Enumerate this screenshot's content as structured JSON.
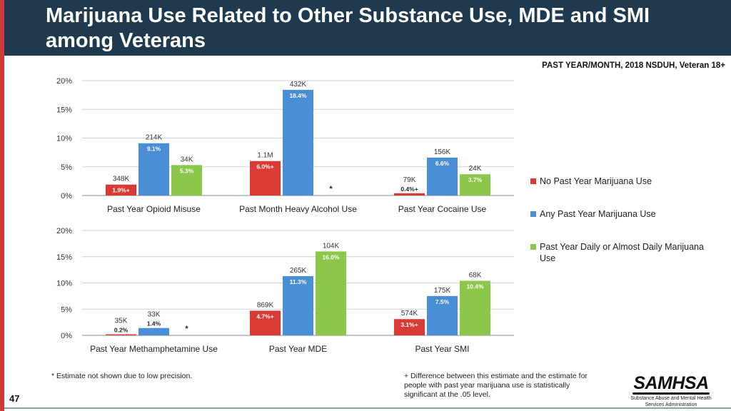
{
  "header": {
    "title": "Marijuana Use Related to Other Substance Use, MDE and SMI among Veterans",
    "subtitle": "PAST YEAR/MONTH, 2018 NSDUH, Veteran 18+"
  },
  "colors": {
    "header_bg": "#1f3a4f",
    "accent_red": "#d03a36",
    "series": [
      "#d93a34",
      "#4a8fd6",
      "#8ac74a"
    ]
  },
  "legend": [
    {
      "label": "No Past Year Marijuana Use",
      "color": "#d93a34"
    },
    {
      "label": "Any Past Year Marijuana Use",
      "color": "#4a8fd6"
    },
    {
      "label": "Past Year Daily or Almost Daily Marijuana Use",
      "color": "#8ac74a"
    }
  ],
  "chart_data": [
    {
      "type": "bar",
      "title": "",
      "xlabel": "",
      "ylabel": "",
      "ylim": [
        0,
        20
      ],
      "yticks": [
        "0%",
        "5%",
        "10%",
        "15%",
        "20%"
      ],
      "categories": [
        "Past Year Opioid Misuse",
        "Past Month Heavy Alcohol Use",
        "Past Year Cocaine Use"
      ],
      "series": [
        {
          "name": "No Past Year Marijuana Use",
          "values": [
            1.9,
            6.0,
            0.4
          ],
          "labels": [
            "1.9%+",
            "6.0%+",
            "0.4%+"
          ],
          "counts": [
            "348K",
            "1.1M",
            "79K"
          ]
        },
        {
          "name": "Any Past Year Marijuana Use",
          "values": [
            9.1,
            18.4,
            6.6
          ],
          "labels": [
            "9.1%",
            "18.4%",
            "6.6%"
          ],
          "counts": [
            "214K",
            "432K",
            "156K"
          ]
        },
        {
          "name": "Past Year Daily or Almost Daily Marijuana Use",
          "values": [
            5.3,
            null,
            3.7
          ],
          "labels": [
            "5.3%",
            "*",
            "3.7%"
          ],
          "counts": [
            "34K",
            "",
            "24K"
          ]
        }
      ]
    },
    {
      "type": "bar",
      "title": "",
      "xlabel": "",
      "ylabel": "",
      "ylim": [
        0,
        20
      ],
      "yticks": [
        "0%",
        "5%",
        "10%",
        "15%",
        "20%"
      ],
      "categories": [
        "Past Year Methamphetamine Use",
        "Past Year MDE",
        "Past Year SMI"
      ],
      "series": [
        {
          "name": "No Past Year Marijuana Use",
          "values": [
            0.2,
            4.7,
            3.1
          ],
          "labels": [
            "0.2%",
            "4.7%+",
            "3.1%+"
          ],
          "counts": [
            "35K",
            "869K",
            "574K"
          ]
        },
        {
          "name": "Any Past Year Marijuana Use",
          "values": [
            1.4,
            11.3,
            7.5
          ],
          "labels": [
            "1.4%",
            "11.3%",
            "7.5%"
          ],
          "counts": [
            "33K",
            "265K",
            "175K"
          ]
        },
        {
          "name": "Past Year Daily or Almost Daily Marijuana Use",
          "values": [
            null,
            16.0,
            10.4
          ],
          "labels": [
            "*",
            "16.0%",
            "10.4%"
          ],
          "counts": [
            "",
            "104K",
            "68K"
          ]
        }
      ]
    }
  ],
  "footnotes": {
    "low_precision": "* Estimate not shown due to low precision.",
    "difference": "+ Difference between this estimate and the estimate for people with past year marijuana use is statistically significant at the .05 level."
  },
  "page_number": "47",
  "logo": {
    "name": "SAMHSA",
    "subtitle": "Substance Abuse and Mental Health Services Administration"
  }
}
